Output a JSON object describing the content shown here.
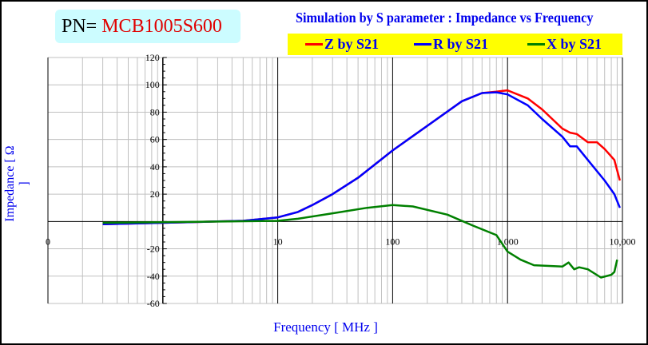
{
  "part": {
    "label": "PN=",
    "value": "MCB1005S600"
  },
  "chart_data": {
    "type": "line",
    "title": "Simulation by S parameter : Impedance vs Frequency",
    "xlabel": "Frequency [ MHz ]",
    "ylabel": "Impedance [ Ω ]",
    "xscale": "log",
    "xlim": [
      0.1,
      10000
    ],
    "ylim": [
      -60,
      120
    ],
    "xticks": [
      {
        "v": 0.1,
        "label": "0"
      },
      {
        "v": 10,
        "label": "10"
      },
      {
        "v": 100,
        "label": "100"
      },
      {
        "v": 1000,
        "label": "1,000"
      },
      {
        "v": 10000,
        "label": "10,000"
      }
    ],
    "yticks": [
      120,
      100,
      80,
      60,
      40,
      20,
      -20,
      -40,
      -60
    ],
    "grid": true,
    "legend_position": "top-right",
    "series": [
      {
        "name": "Z by S21",
        "color": "#ff0000",
        "x": [
          0.3,
          1,
          3,
          5,
          10,
          15,
          20,
          30,
          50,
          100,
          200,
          400,
          600,
          800,
          900,
          1000,
          1500,
          2000,
          3000,
          3500,
          4000,
          5000,
          6000,
          7000,
          8500,
          9500
        ],
        "y": [
          -2,
          -1,
          0,
          0.5,
          3,
          7,
          12,
          20,
          32,
          52,
          70,
          88,
          94,
          95,
          95.5,
          96,
          90,
          82,
          68,
          65,
          64,
          58,
          58,
          53,
          45,
          30
        ]
      },
      {
        "name": "R by S21",
        "color": "#0000ff",
        "x": [
          0.3,
          1,
          3,
          5,
          10,
          15,
          20,
          30,
          50,
          100,
          200,
          400,
          600,
          800,
          1000,
          1500,
          2000,
          3000,
          3500,
          4000,
          5000,
          7000,
          8500,
          9500
        ],
        "y": [
          -2,
          -1,
          0,
          0.5,
          3,
          7,
          12,
          20,
          32,
          52,
          70,
          88,
          94,
          94.5,
          93,
          85,
          75,
          62,
          55,
          55,
          45,
          30,
          20,
          10
        ]
      },
      {
        "name": "X by S21",
        "color": "#008000",
        "x": [
          0.3,
          1,
          10,
          15,
          30,
          60,
          100,
          150,
          300,
          500,
          800,
          1000,
          1300,
          1700,
          3000,
          3400,
          3800,
          4200,
          5000,
          6500,
          8000,
          8500,
          9000
        ],
        "y": [
          -1,
          -0.5,
          0.5,
          2,
          6,
          10,
          12,
          11,
          5,
          -3,
          -10,
          -22,
          -28,
          -32,
          -33,
          -30,
          -35,
          -33.5,
          -35,
          -41,
          -39,
          -37,
          -28
        ]
      }
    ]
  }
}
